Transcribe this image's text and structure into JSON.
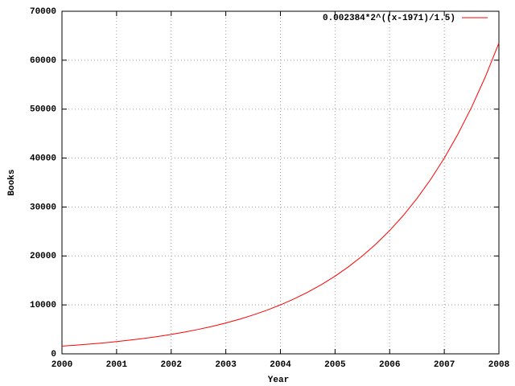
{
  "chart_data": {
    "type": "line",
    "x_label": "Year",
    "y_label": "Books",
    "x": [
      2000,
      2000.25,
      2000.5,
      2000.75,
      2001,
      2001.25,
      2001.5,
      2001.75,
      2002,
      2002.25,
      2002.5,
      2002.75,
      2003,
      2003.25,
      2003.5,
      2003.75,
      2004,
      2004.25,
      2004.5,
      2004.75,
      2005,
      2005.25,
      2005.5,
      2005.75,
      2006,
      2006.25,
      2006.5,
      2006.75,
      2007,
      2007.25,
      2007.5,
      2007.75,
      2008
    ],
    "series": [
      {
        "name": "0.002384*2^((x-1971)/1.5)",
        "color": "#ff0000",
        "values": [
          1574.8,
          1767.6,
          1984.1,
          2227.1,
          2499.8,
          2805.9,
          3149.5,
          3535.2,
          3968.2,
          4454.1,
          4999.6,
          5611.9,
          6299.2,
          7070.7,
          7936.5,
          8908.4,
          9999.3,
          11224,
          12598,
          14141,
          15873,
          17817,
          19998,
          22447,
          25197,
          28283,
          31746,
          35634,
          39997,
          44896,
          50393,
          56565,
          63491
        ]
      }
    ],
    "xlim": [
      2000,
      2008
    ],
    "xticks": [
      2000,
      2001,
      2002,
      2003,
      2004,
      2005,
      2006,
      2007,
      2008
    ],
    "ylim": [
      0,
      70000
    ],
    "yticks": [
      0,
      10000,
      20000,
      30000,
      40000,
      50000,
      60000,
      70000
    ],
    "grid": true,
    "legend": "top-right"
  }
}
